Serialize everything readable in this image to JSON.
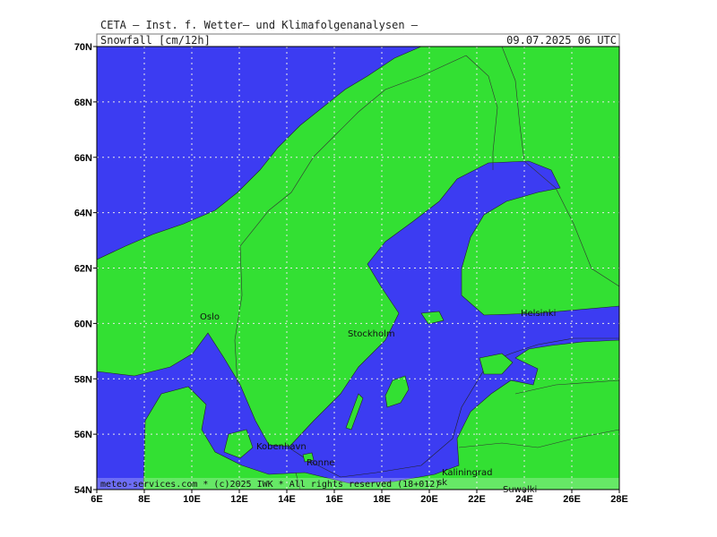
{
  "header": {
    "title": "CETA – Inst. f. Wetter– und Klimafolgenanalysen –",
    "parameter": "Snowfall [cm/12h]",
    "valid_time": "09.07.2025 06 UTC"
  },
  "lat_labels": [
    "70N",
    "68N",
    "66N",
    "64N",
    "62N",
    "60N",
    "58N",
    "56N",
    "54N"
  ],
  "lon_labels": [
    "6E",
    "8E",
    "10E",
    "12E",
    "14E",
    "16E",
    "18E",
    "20E",
    "22E",
    "24E",
    "26E",
    "28E"
  ],
  "cities": [
    "Oslo",
    "Stockholm",
    "Helsinki",
    "Kobenhavn",
    "Ronne",
    "Kaliningrad",
    "sk",
    "Suwalki"
  ],
  "footer": {
    "credit": "meteo-services.com * (c)2025 IWK * All rights reserved (18+012)"
  }
}
